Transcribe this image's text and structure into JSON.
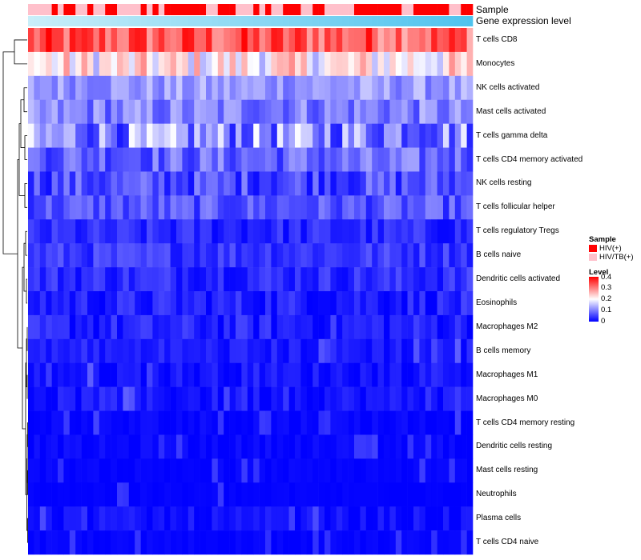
{
  "chart_data": {
    "type": "heatmap",
    "annotation_titles": [
      "Sample",
      "Gene expression level"
    ],
    "rows": [
      "T cells CD8",
      "Monocytes",
      "NK cells activated",
      "Mast cells activated",
      "T cells gamma delta",
      "T cells CD4 memory activated",
      "NK cells resting",
      "T cells follicular helper",
      "T cells regulatory  Tregs",
      "B cells naive",
      "Dendritic cells activated",
      "Eosinophils",
      "Macrophages M2",
      "B cells memory",
      "Macrophages M1",
      "Macrophages M0",
      "T cells CD4 memory resting",
      "Dendritic cells resting",
      "Mast cells resting",
      "Neutrophils",
      "Plasma cells",
      "T cells CD4 naive"
    ],
    "samples": [
      "P",
      "P",
      "P",
      "P",
      "H",
      "P",
      "H",
      "H",
      "P",
      "P",
      "H",
      "P",
      "P",
      "H",
      "H",
      "P",
      "P",
      "P",
      "P",
      "H",
      "P",
      "H",
      "P",
      "H",
      "H",
      "H",
      "H",
      "H",
      "H",
      "H",
      "P",
      "P",
      "H",
      "H",
      "H",
      "P",
      "P",
      "P",
      "H",
      "P",
      "H",
      "P",
      "P",
      "H",
      "H",
      "H",
      "P",
      "P",
      "H",
      "H",
      "P",
      "P",
      "P",
      "P",
      "P",
      "H",
      "H",
      "H",
      "H",
      "H",
      "H",
      "H",
      "H",
      "P",
      "P",
      "H",
      "H",
      "H",
      "H",
      "H",
      "H",
      "P",
      "P",
      "H",
      "H"
    ],
    "sample_legend": {
      "title": "Sample",
      "items": [
        {
          "code": "H",
          "label": "HIV(+)",
          "color": "#ff0000"
        },
        {
          "code": "P",
          "label": "HIV/TB(+)",
          "color": "#ffc0cb"
        }
      ]
    },
    "color_legend": {
      "title": "Level",
      "ticks": [
        "0.4",
        "0.3",
        "0.2",
        "0.1",
        "0"
      ],
      "min": 0,
      "max": 0.4,
      "stops": [
        "#0000ff",
        "#ffffff",
        "#ff0000"
      ]
    },
    "expression_gradient": [
      "#c9eef9",
      "#4fc3ee"
    ],
    "row_means": [
      0.33,
      0.21,
      0.12,
      0.1,
      0.11,
      0.08,
      0.06,
      0.065,
      0.03,
      0.045,
      0.035,
      0.025,
      0.025,
      0.02,
      0.015,
      0.015,
      0.005,
      0.005,
      0.003,
      0.002,
      0.008,
      0.003
    ],
    "row_spread": [
      0.07,
      0.08,
      0.04,
      0.05,
      0.09,
      0.05,
      0.05,
      0.04,
      0.03,
      0.03,
      0.03,
      0.03,
      0.03,
      0.02,
      0.02,
      0.02,
      0.01,
      0.01,
      0.006,
      0.004,
      0.02,
      0.006
    ]
  }
}
